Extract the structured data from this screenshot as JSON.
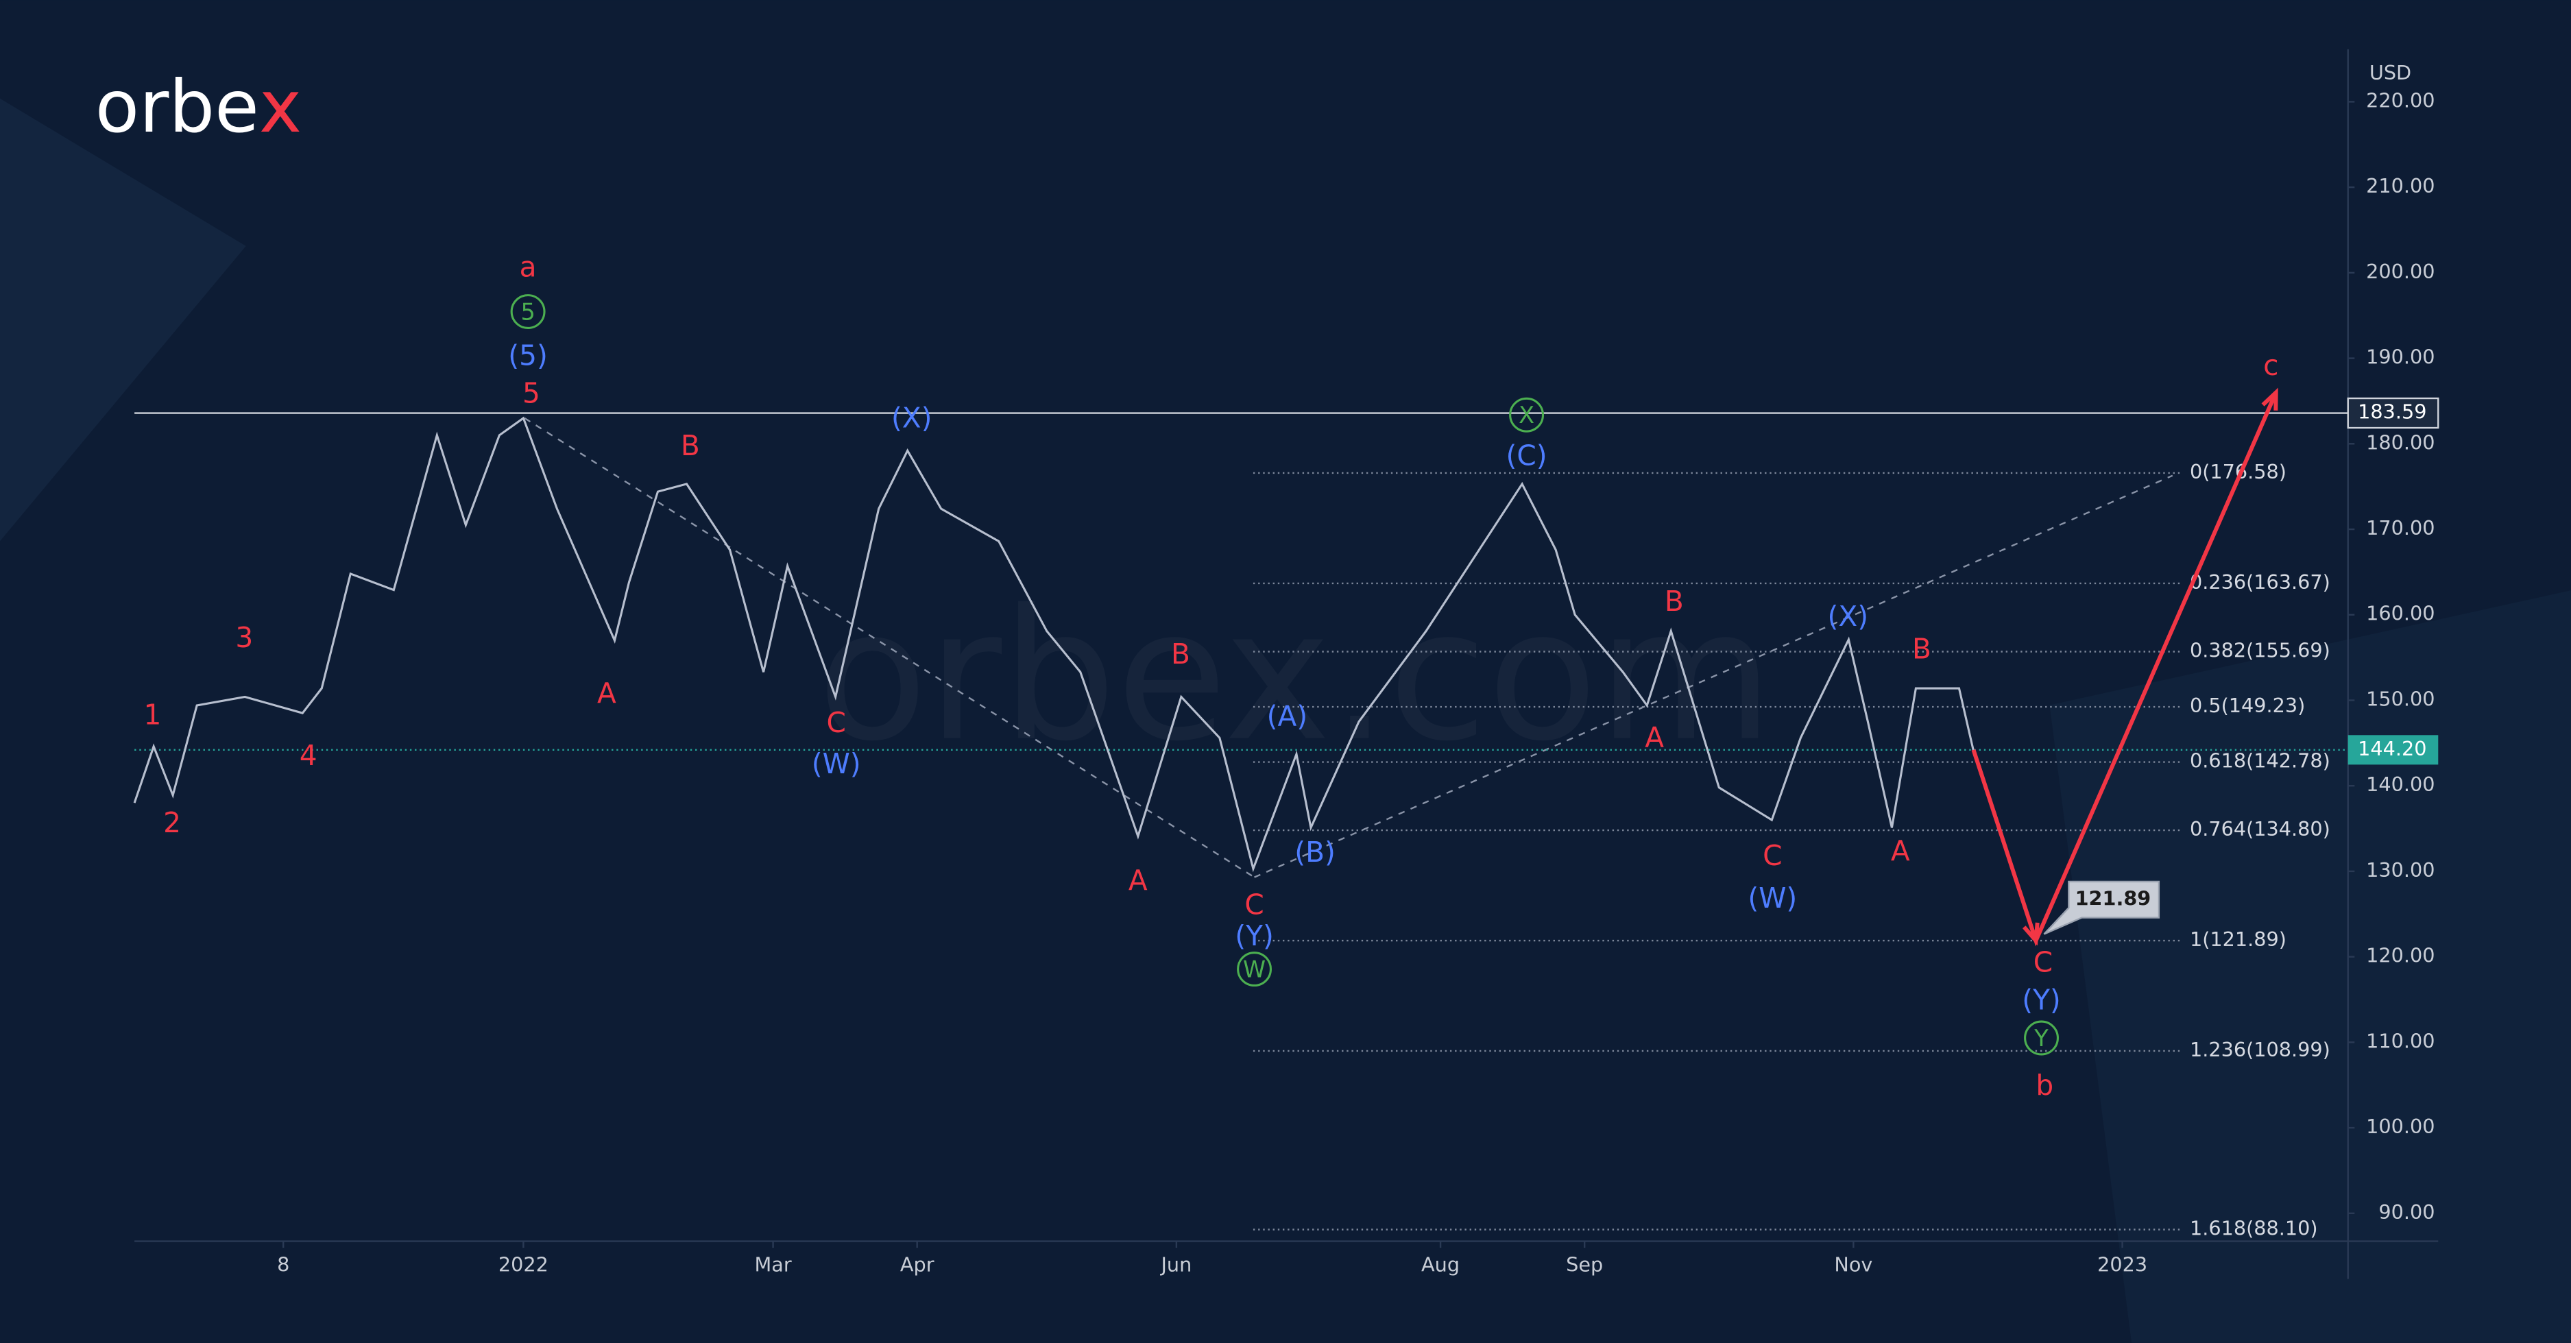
{
  "chart_data": {
    "type": "line",
    "logo": [
      "orbe",
      "x"
    ],
    "watermark": "orbex.com",
    "currency": "USD",
    "x": [
      0,
      4,
      8,
      13,
      23,
      35,
      39,
      45,
      54,
      63,
      69,
      76,
      81,
      88,
      100,
      103,
      109,
      115,
      124,
      131,
      136,
      146,
      155,
      161,
      168,
      180,
      190,
      197,
      209,
      218,
      226,
      233,
      242,
      245,
      255,
      269,
      279,
      289,
      296,
      300,
      310,
      315,
      320,
      330,
      341,
      347,
      357,
      361,
      366,
      371,
      380,
      383
    ],
    "series": [
      {
        "name": "price",
        "color": "#b7bfcf",
        "values": [
          138,
          144.6,
          138.9,
          149.4,
          150.4,
          148.5,
          151.4,
          164.8,
          162.9,
          181,
          170.5,
          181,
          183,
          172.4,
          157,
          163.8,
          174.4,
          175.3,
          167.6,
          153.3,
          165.7,
          150.4,
          172.4,
          179.2,
          172.4,
          168.6,
          158.1,
          153.3,
          134.1,
          150.4,
          145.6,
          130.3,
          143.7,
          135.1,
          147.5,
          158.1,
          166.7,
          175.3,
          167.6,
          160,
          153.3,
          149.4,
          158.1,
          139.8,
          136,
          145.6,
          157.1,
          147.5,
          135.1,
          151.4,
          151.4,
          144.1
        ]
      }
    ],
    "xlim": [
      0,
      461
    ],
    "xticks": [
      {
        "value": 31,
        "label": "8"
      },
      {
        "value": 81,
        "label": "2022"
      },
      {
        "value": 133,
        "label": "Mar"
      },
      {
        "value": 163,
        "label": "Apr"
      },
      {
        "value": 217,
        "label": "Jun"
      },
      {
        "value": 272,
        "label": "Aug"
      },
      {
        "value": 302,
        "label": "Sep"
      },
      {
        "value": 358,
        "label": "Nov"
      },
      {
        "value": 414,
        "label": "2023"
      }
    ],
    "ylim": [
      86,
      223
    ],
    "yticks": [
      {
        "value": 90,
        "label": "90.00"
      },
      {
        "value": 100,
        "label": "100.00"
      },
      {
        "value": 110,
        "label": "110.00"
      },
      {
        "value": 120,
        "label": "120.00"
      },
      {
        "value": 130,
        "label": "130.00"
      },
      {
        "value": 140,
        "label": "140.00"
      },
      {
        "value": 150,
        "label": "150.00"
      },
      {
        "value": 160,
        "label": "160.00"
      },
      {
        "value": 170,
        "label": "170.00"
      },
      {
        "value": 180,
        "label": "180.00"
      },
      {
        "value": 190,
        "label": "190.00"
      },
      {
        "value": 200,
        "label": "200.00"
      },
      {
        "value": 210,
        "label": "210.00"
      },
      {
        "value": 220,
        "label": "220.00"
      }
    ],
    "resistance": {
      "value": 183.59,
      "label": "183.59"
    },
    "last_price": {
      "value": 144.2,
      "label": "144.20",
      "color": "#26a69a"
    },
    "target": {
      "value": 121.89,
      "label": "121.89"
    },
    "fib_levels": [
      {
        "value": 176.58,
        "label": "0(176.58)"
      },
      {
        "value": 163.67,
        "label": "0.236(163.67)"
      },
      {
        "value": 155.69,
        "label": "0.382(155.69)"
      },
      {
        "value": 149.23,
        "label": "0.5(149.23)"
      },
      {
        "value": 142.78,
        "label": "0.618(142.78)"
      },
      {
        "value": 134.8,
        "label": "0.764(134.80)"
      },
      {
        "value": 121.89,
        "label": "1(121.89)"
      },
      {
        "value": 108.99,
        "label": "1.236(108.99)"
      },
      {
        "value": 88.1,
        "label": "1.618(88.10)"
      }
    ],
    "fib_xlim": [
      233,
      426
    ],
    "projection": {
      "x": [
        383,
        396,
        446
      ],
      "values": [
        144.2,
        121.89,
        186
      ],
      "color": "#f23645"
    },
    "wave_labels": [
      {
        "text": "a",
        "color": "#f23645"
      },
      {
        "text": "5",
        "color": "#4caf50",
        "circled": true
      },
      {
        "text": "(5)",
        "color": "#4e7dff"
      },
      {
        "text": "5",
        "color": "#f23645"
      },
      {
        "text": "1",
        "color": "#f23645"
      },
      {
        "text": "2",
        "color": "#f23645"
      },
      {
        "text": "3",
        "color": "#f23645"
      },
      {
        "text": "4",
        "color": "#f23645"
      },
      {
        "text": "B",
        "color": "#f23645"
      },
      {
        "text": "A",
        "color": "#f23645"
      },
      {
        "text": "C",
        "color": "#f23645"
      },
      {
        "text": "(W)",
        "color": "#4e7dff"
      },
      {
        "text": "(X)",
        "color": "#4e7dff"
      },
      {
        "text": "B",
        "color": "#f23645"
      },
      {
        "text": "A",
        "color": "#f23645"
      },
      {
        "text": "C",
        "color": "#f23645"
      },
      {
        "text": "(Y)",
        "color": "#4e7dff"
      },
      {
        "text": "W",
        "color": "#4caf50",
        "circled": true
      },
      {
        "text": "(A)",
        "color": "#4e7dff"
      },
      {
        "text": "(B)",
        "color": "#4e7dff"
      },
      {
        "text": "(C)",
        "color": "#4e7dff"
      },
      {
        "text": "X",
        "color": "#4caf50",
        "circled": true
      },
      {
        "text": "B",
        "color": "#f23645"
      },
      {
        "text": "A",
        "color": "#f23645"
      },
      {
        "text": "C",
        "color": "#f23645"
      },
      {
        "text": "(W)",
        "color": "#4e7dff"
      },
      {
        "text": "(X)",
        "color": "#4e7dff"
      },
      {
        "text": "B",
        "color": "#f23645"
      },
      {
        "text": "A",
        "color": "#f23645"
      },
      {
        "text": "C",
        "color": "#f23645"
      },
      {
        "text": "(Y)",
        "color": "#4e7dff"
      },
      {
        "text": "Y",
        "color": "#4caf50",
        "circled": true
      },
      {
        "text": "b",
        "color": "#f23645"
      },
      {
        "text": "c",
        "color": "#f23645"
      }
    ]
  }
}
